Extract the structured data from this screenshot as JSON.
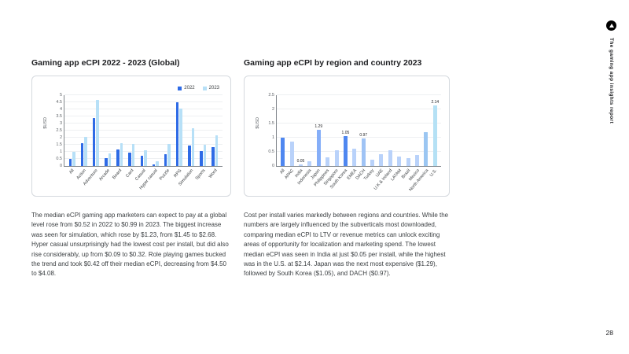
{
  "page": {
    "number": "28",
    "rail": {
      "brand_vertical_text": "The gaming app insights report",
      "logo_icon": "appsflyer-logo"
    }
  },
  "sections": {
    "global": {
      "title": "Gaming app eCPI 2022 - 2023 (Global)",
      "body": "The median eCPI gaming app marketers can expect to pay at a global level rose from $0.52 in 2022 to $0.99 in 2023. The biggest increase was seen for simulation, which rose by $1.23, from $1.45 to $2.68. Hyper casual unsurprisingly had the lowest cost per install, but did also rise considerably, up from $0.09 to $0.32. Role playing games bucked the trend and took $0.42 off their median eCPI, decreasing from $4.50 to $4.08."
    },
    "region": {
      "title": "Gaming app eCPI by region and country 2023",
      "body": "Cost per install varies markedly between regions and countries. While the numbers are largely influenced by the subverticals most downloaded, comparing median eCPI to LTV or revenue metrics can unlock exciting areas of opportunity for localization and marketing spend. The lowest median eCPI was seen in India at just $0.05 per install, while the highest was in the U.S. at $2.14. Japan was the next most expensive ($1.29), followed by South Korea ($1.05), and DACH ($0.97)."
    }
  },
  "chart_data": [
    {
      "type": "bar",
      "title": "Gaming app eCPI 2022 - 2023 (Global)",
      "ylabel": "$USD",
      "xlabel": "",
      "ylim": [
        0,
        5
      ],
      "yticks": [
        0,
        0.5,
        1,
        1.5,
        2,
        2.5,
        3,
        3.5,
        4,
        4.5,
        5
      ],
      "grid": true,
      "legend_position": "top-right",
      "categories": [
        "All",
        "Action",
        "Adventure",
        "Arcade",
        "Board",
        "Card",
        "Casual",
        "Hyper casual",
        "Puzzle",
        "RPG",
        "Simulation",
        "Sports",
        "Word"
      ],
      "series": [
        {
          "name": "2022",
          "color": "#2e6be6",
          "values": [
            0.52,
            1.62,
            3.38,
            0.55,
            1.15,
            0.92,
            0.7,
            0.09,
            0.85,
            4.5,
            1.45,
            1.05,
            1.35
          ]
        },
        {
          "name": "2023",
          "color": "#b7e0f7",
          "values": [
            0.99,
            2.05,
            4.65,
            0.88,
            1.6,
            1.55,
            1.1,
            0.32,
            1.58,
            4.08,
            2.68,
            1.48,
            2.18
          ]
        }
      ]
    },
    {
      "type": "bar",
      "title": "Gaming app eCPI by region and country 2023",
      "ylabel": "$USD",
      "xlabel": "",
      "ylim": [
        0,
        2.5
      ],
      "yticks": [
        0,
        0.5,
        1,
        1.5,
        2,
        2.5
      ],
      "grid": true,
      "legend_position": "none",
      "categories": [
        "All",
        "APAC",
        "India",
        "Indonesia",
        "Japan",
        "Philippines",
        "Singapore",
        "South Korea",
        "EMEA",
        "DACH",
        "Turkey",
        "UAE",
        "U.K & Ireland",
        "LATAM",
        "Brazil",
        "Mexico",
        "North America",
        "U.S."
      ],
      "values": [
        0.99,
        0.85,
        0.05,
        0.18,
        1.29,
        0.3,
        0.55,
        1.05,
        0.62,
        0.97,
        0.22,
        0.42,
        0.55,
        0.32,
        0.28,
        0.38,
        1.2,
        2.14
      ],
      "bar_labels": [
        "",
        "",
        "0.05",
        "",
        "1.29",
        "",
        "",
        "1.05",
        "",
        "0.97",
        "",
        "",
        "",
        "",
        "",
        "",
        "",
        "2.14"
      ],
      "bar_colors": [
        "#4f87f0",
        "#b9d2fa",
        "#b9d2fa",
        "#b9d2fa",
        "#85aef8",
        "#b9d2fa",
        "#b9d2fa",
        "#4f87f0",
        "#b9d2fa",
        "#9fc3f5",
        "#b9d2fa",
        "#b9d2fa",
        "#b9d2fa",
        "#b9d2fa",
        "#b9d2fa",
        "#b9d2fa",
        "#9bc6f2",
        "#b5e1f5"
      ]
    }
  ]
}
